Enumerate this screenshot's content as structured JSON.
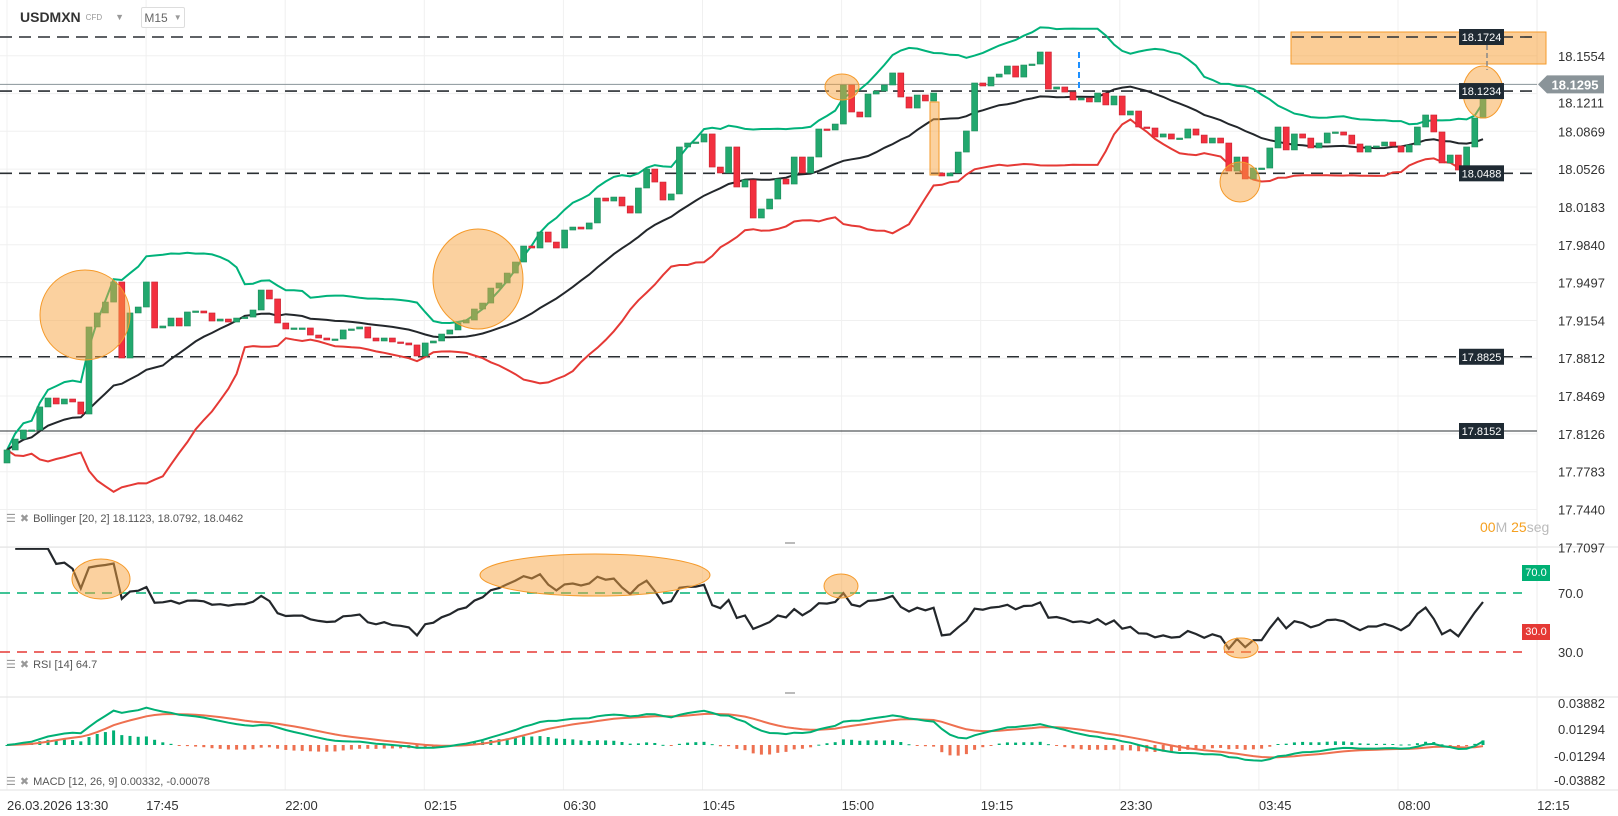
{
  "header": {
    "symbol": "USDMXN",
    "instrument_type": "CFD",
    "timeframe": "M15"
  },
  "countdown": {
    "minutes": "00",
    "minutes_unit": "M",
    "seconds": "25",
    "seconds_unit": "seg"
  },
  "indicators": {
    "bollinger_label": "Bollinger [20, 2] 18.1123, 18.0792, 18.0462",
    "rsi_label": "RSI [14] 64.7",
    "macd_label": "MACD [12, 26, 9] 0.00332, -0.00078"
  },
  "icons": {
    "indicator_menu": "list-icon",
    "indicator_remove": "close-icon",
    "dropdown": "caret-down-icon"
  },
  "colors": {
    "bull": "#22a86e",
    "bear": "#f2303f",
    "bb_upper": "#00b27a",
    "bb_middle": "#23272b",
    "bb_lower": "#e53935",
    "rsi_line": "#23272b",
    "rsi_overbought": "#00b074",
    "rsi_oversold": "#e53935",
    "macd_line": "#00b074",
    "macd_signal": "#ee7050",
    "highlight": "#f7a440",
    "level_tag": "#1f2a33",
    "price_tag": "#8a9499"
  },
  "chart_data": [
    {
      "type": "candlestick",
      "title": "USDMXN",
      "first_open": 17.7862,
      "open_overrides": {
        "114": 18.0491
      },
      "closes": [
        17.798,
        17.8079,
        17.8161,
        17.8161,
        17.837,
        17.8451,
        17.8397,
        17.8442,
        17.8415,
        17.8306,
        17.9095,
        17.9222,
        17.9321,
        17.9503,
        17.8814,
        17.9222,
        17.9276,
        17.9503,
        17.9086,
        17.9104,
        17.9176,
        17.9104,
        17.9231,
        17.924,
        17.9222,
        17.9149,
        17.9167,
        17.914,
        17.9176,
        17.9185,
        17.9249,
        17.943,
        17.9349,
        17.9131,
        17.9077,
        17.9086,
        17.9086,
        17.9022,
        17.8995,
        17.8977,
        17.8986,
        17.9068,
        17.9077,
        17.9095,
        17.8995,
        17.8968,
        17.8995,
        17.8959,
        17.895,
        17.8932,
        17.8832,
        17.895,
        17.8968,
        17.9031,
        17.9068,
        17.9131,
        17.9158,
        17.9258,
        17.9312,
        17.9448,
        17.9494,
        17.9584,
        17.9684,
        17.9829,
        17.9811,
        17.9956,
        17.9865,
        17.9811,
        17.9974,
        18.0001,
        17.9983,
        18.0038,
        18.0264,
        18.0237,
        18.0273,
        18.0192,
        18.0128,
        18.0355,
        18.0527,
        18.0409,
        18.0246,
        18.0301,
        18.0727,
        18.0763,
        18.0772,
        18.0845,
        18.0545,
        18.0491,
        18.0727,
        18.0364,
        18.0428,
        18.0083,
        18.0165,
        18.0255,
        18.0437,
        18.0391,
        18.0636,
        18.0491,
        18.0636,
        18.089,
        18.0881,
        18.0935,
        18.1289,
        18.1044,
        18.0999,
        18.1207,
        18.1234,
        18.1289,
        18.1398,
        18.118,
        18.108,
        18.1198,
        18.1144,
        18.1216,
        18.0464,
        18.0491,
        18.0681,
        18.0872,
        18.1307,
        18.128,
        18.1361,
        18.1388,
        18.1461,
        18.1361,
        18.147,
        18.1479,
        18.1588,
        18.1252,
        18.1271,
        18.1225,
        18.1153,
        18.1171,
        18.1135,
        18.1216,
        18.1108,
        18.1189,
        18.1017,
        18.1053,
        18.0908,
        18.0899,
        18.0817,
        18.0845,
        18.0799,
        18.0808,
        18.089,
        18.0835,
        18.0763,
        18.0808,
        18.0763,
        18.0509,
        18.0636,
        18.0437,
        18.0536,
        18.0536,
        18.0718,
        18.0908,
        18.07,
        18.0845,
        18.0808,
        18.0718,
        18.0763,
        18.0854,
        18.0863,
        18.0835,
        18.0754,
        18.0681,
        18.0736,
        18.0736,
        18.0772,
        18.0736,
        18.0681,
        18.0745,
        18.0908,
        18.1017,
        18.0863,
        18.0582,
        18.0654,
        18.0518,
        18.0727,
        18.099,
        18.1295
      ],
      "y_ticks": [
        "18.1554",
        "18.1211",
        "18.0869",
        "18.0526",
        "18.0183",
        "17.9840",
        "17.9497",
        "17.9154",
        "17.8812",
        "17.8469",
        "17.8126",
        "17.7783",
        "17.7440",
        "17.7097"
      ],
      "x_ticks": [
        "26.03.2026 13:30",
        "17:45",
        "22:00",
        "02:15",
        "06:30",
        "10:45",
        "15:00",
        "19:15",
        "23:30",
        "03:45",
        "08:00",
        "12:15"
      ],
      "dashed_levels": [
        "18.1724",
        "18.1234",
        "18.0488",
        "17.8825"
      ],
      "solid_level": "17.8152",
      "current_price": "18.1295",
      "overlay": "Bollinger [20, 2]"
    },
    {
      "type": "line",
      "title": "RSI [14]",
      "y_ticks": [
        "70.0",
        "30.0"
      ],
      "levels": [
        "70.0",
        "30.0"
      ]
    },
    {
      "type": "bar",
      "title": "MACD [12, 26, 9]",
      "y_ticks": [
        "0.03882",
        "0.01294",
        "-0.01294",
        "-0.03882"
      ]
    }
  ]
}
